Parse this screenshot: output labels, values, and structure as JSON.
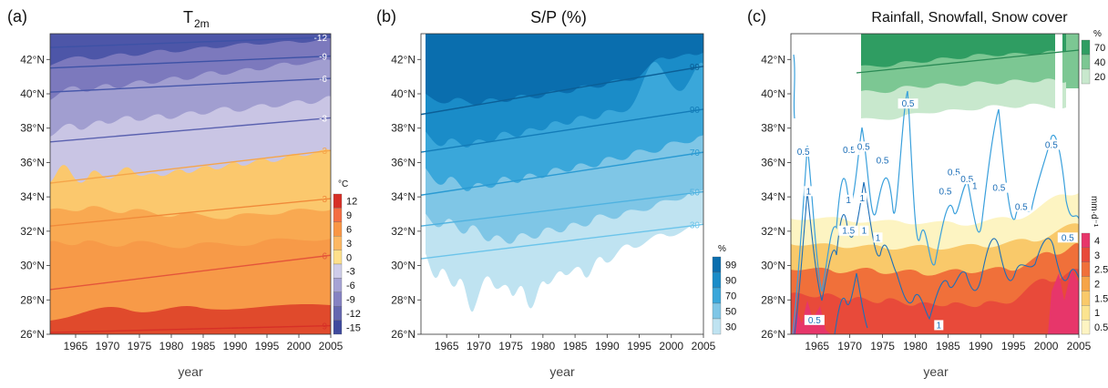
{
  "chart_data": [
    {
      "type": "heatmap",
      "panel_label": "(a)",
      "title_main": "T",
      "title_sub": "2m",
      "xlabel": "year",
      "x_ticks": [
        "1965",
        "1970",
        "1975",
        "1980",
        "1985",
        "1990",
        "1995",
        "2000",
        "2005"
      ],
      "xlim": [
        1961,
        2005
      ],
      "y_ticks": [
        "26°N",
        "28°N",
        "30°N",
        "32°N",
        "34°N",
        "36°N",
        "38°N",
        "40°N",
        "42°N"
      ],
      "ylim": [
        26,
        43.5
      ],
      "colorbar_unit": "°C",
      "colorbar_labels": [
        "12",
        "9",
        "6",
        "3",
        "0",
        "-3",
        "-6",
        "-9",
        "-12",
        "-15"
      ],
      "colorbar_colors": [
        "#d73027",
        "#f46d43",
        "#f99645",
        "#fdb863",
        "#fee08b",
        "#cfcdea",
        "#a6a3d4",
        "#8582c2",
        "#6467b0",
        "#3f4a9d"
      ],
      "trend_lines": [
        {
          "label": "-12",
          "y_start": 42.7,
          "y_end": 43.3,
          "color": "#3e52a6"
        },
        {
          "label": "-9",
          "y_start": 41.5,
          "y_end": 42.2,
          "color": "#3e52a6"
        },
        {
          "label": "-6",
          "y_start": 40.1,
          "y_end": 40.9,
          "color": "#4757aa"
        },
        {
          "label": "-3",
          "y_start": 37.2,
          "y_end": 38.6,
          "color": "#5b62b0"
        },
        {
          "label": "3",
          "y_start": 34.8,
          "y_end": 36.7,
          "color": "#f5a54a"
        },
        {
          "label": "3",
          "y_start": 32.3,
          "y_end": 33.9,
          "color": "#f08a3a"
        },
        {
          "label": "6",
          "y_start": 28.6,
          "y_end": 30.6,
          "color": "#e4553a"
        },
        {
          "label": "9",
          "y_start": 26.1,
          "y_end": 26.5,
          "color": "#d73027"
        }
      ]
    },
    {
      "type": "heatmap",
      "panel_label": "(b)",
      "title": "S/P (%)",
      "xlabel": "year",
      "x_ticks": [
        "1965",
        "1970",
        "1975",
        "1980",
        "1985",
        "1990",
        "1995",
        "2000",
        "2005"
      ],
      "xlim": [
        1961,
        2005
      ],
      "y_ticks": [
        "26°N",
        "28°N",
        "30°N",
        "32°N",
        "34°N",
        "36°N",
        "38°N",
        "40°N",
        "42°N"
      ],
      "ylim": [
        26,
        43.5
      ],
      "colorbar_unit": "%",
      "colorbar_labels": [
        "99",
        "90",
        "70",
        "50",
        "30"
      ],
      "colorbar_colors": [
        "#0a6eae",
        "#1a8cc8",
        "#3aa7da",
        "#7fc6e6",
        "#bfe3f1"
      ],
      "trend_lines": [
        {
          "label": "99",
          "y_start": 38.8,
          "y_end": 41.6,
          "color": "#0b5f97"
        },
        {
          "label": "90",
          "y_start": 36.6,
          "y_end": 39.1,
          "color": "#137cb8"
        },
        {
          "label": "70",
          "y_start": 34.1,
          "y_end": 36.6,
          "color": "#2a9ad2"
        },
        {
          "label": "50",
          "y_start": 32.3,
          "y_end": 34.3,
          "color": "#4fb2e0"
        },
        {
          "label": "30",
          "y_start": 30.4,
          "y_end": 32.4,
          "color": "#6cc4ea"
        }
      ]
    },
    {
      "type": "heatmap",
      "panel_label": "(c)",
      "title": "Rainfall, Snowfall, Snow cover",
      "xlabel": "year",
      "x_ticks": [
        "1965",
        "1970",
        "1975",
        "1980",
        "1985",
        "1990",
        "1995",
        "2000",
        "2005"
      ],
      "xlim": [
        1961,
        2005
      ],
      "y_ticks": [
        "26°N",
        "28°N",
        "30°N",
        "32°N",
        "34°N",
        "36°N",
        "38°N",
        "40°N",
        "42°N"
      ],
      "ylim": [
        26,
        43.5
      ],
      "snow_cover_bar": {
        "unit": "%",
        "labels": [
          "70",
          "40",
          "20"
        ],
        "colors": [
          "#2f9d62",
          "#7cc793",
          "#c8e8cd"
        ]
      },
      "rainfall_bar": {
        "unit": "mm·d⁻¹",
        "labels": [
          "4",
          "3",
          "2.5",
          "2",
          "1.5",
          "1",
          "0.5"
        ],
        "colors": [
          "#e7366a",
          "#e84a3a",
          "#f0703a",
          "#f6a447",
          "#f9c96a",
          "#fbe38f",
          "#fdf4c2"
        ]
      },
      "snowfall_contour_labels": [
        {
          "text": "0.5",
          "year": 1962.9,
          "lat": 36.5
        },
        {
          "text": "0.5",
          "year": 1969.9,
          "lat": 36.6
        },
        {
          "text": "0.5",
          "year": 1972.1,
          "lat": 36.8
        },
        {
          "text": "0.5",
          "year": 1975.0,
          "lat": 36.0
        },
        {
          "text": "0.5",
          "year": 1978.9,
          "lat": 39.3
        },
        {
          "text": "0.5",
          "year": 1985.9,
          "lat": 35.3
        },
        {
          "text": "0.5",
          "year": 1987.9,
          "lat": 34.9
        },
        {
          "text": "1",
          "year": 1989.1,
          "lat": 34.5
        },
        {
          "text": "0.5",
          "year": 1984.6,
          "lat": 34.2
        },
        {
          "text": "0.5",
          "year": 1992.8,
          "lat": 34.4
        },
        {
          "text": "0.5",
          "year": 1996.2,
          "lat": 33.3
        },
        {
          "text": "0.5",
          "year": 2000.8,
          "lat": 36.9
        },
        {
          "text": "0.5",
          "year": 2003.3,
          "lat": 31.5
        },
        {
          "text": "1",
          "year": 1963.7,
          "lat": 34.2
        },
        {
          "text": "1",
          "year": 1969.8,
          "lat": 33.7
        },
        {
          "text": "1",
          "year": 1971.9,
          "lat": 33.8
        },
        {
          "text": "1.5",
          "year": 1969.8,
          "lat": 31.9
        },
        {
          "text": "1",
          "year": 1972.2,
          "lat": 31.9
        },
        {
          "text": "1",
          "year": 1974.3,
          "lat": 31.5
        },
        {
          "text": "0.5",
          "year": 1964.6,
          "lat": 26.7
        },
        {
          "text": "1",
          "year": 1983.6,
          "lat": 26.4
        }
      ]
    }
  ]
}
